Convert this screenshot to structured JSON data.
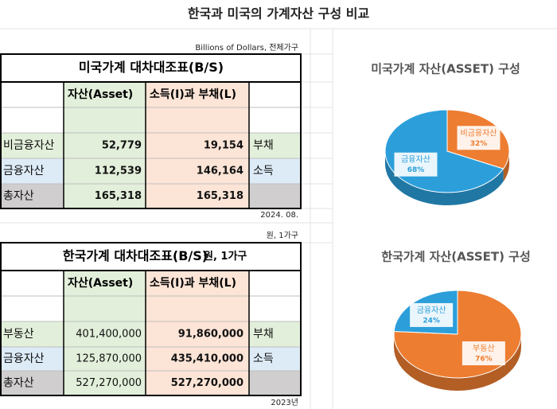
{
  "title": "한국과 미국의 가계자산 구성 비교",
  "tables": [
    {
      "note_above": "Billions of Dollars, 전체가구",
      "title": "미국가계 대차대조표(B/S)",
      "headers": [
        "자산(Asset)",
        "소득(I)과 부채(L)"
      ],
      "rows": [
        [
          "비금융자산",
          "52,779",
          "19,154",
          "부채"
        ],
        [
          "금융자산",
          "112,539",
          "146,164",
          "소득"
        ],
        [
          "총자산",
          "165,318",
          "165,318"
        ]
      ],
      "note_below": "2024. 08."
    },
    {
      "note_above": "원, 1가구",
      "title": "한국가계 대차대조표(B/S)",
      "title_unit": "원, 1가구",
      "headers": [
        "자산(Asset)",
        "소득(I)과 부채(L)"
      ],
      "rows": [
        [
          "부동산",
          "401,400,000",
          "91,860,000",
          "부채"
        ],
        [
          "금융자산",
          "125,870,000",
          "435,410,000",
          "소득"
        ],
        [
          "총자산",
          "527,270,000",
          "527,270,000"
        ]
      ],
      "note_below": "2023년"
    }
  ],
  "chart_data": [
    {
      "type": "pie",
      "title": "미국가계 자산(ASSET) 구성",
      "categories": [
        "비금융자산",
        "금융자산"
      ],
      "values": [
        32,
        68
      ],
      "value_labels": [
        "32%",
        "68%"
      ],
      "colors": [
        "#ed7d31",
        "#2c9fdb"
      ]
    },
    {
      "type": "pie",
      "title": "한국가계 자산(ASSET) 구성",
      "categories": [
        "부동산",
        "금융자산"
      ],
      "values": [
        76,
        24
      ],
      "value_labels": [
        "76%",
        "24%"
      ],
      "colors": [
        "#ed7d31",
        "#2c9fdb"
      ]
    }
  ]
}
